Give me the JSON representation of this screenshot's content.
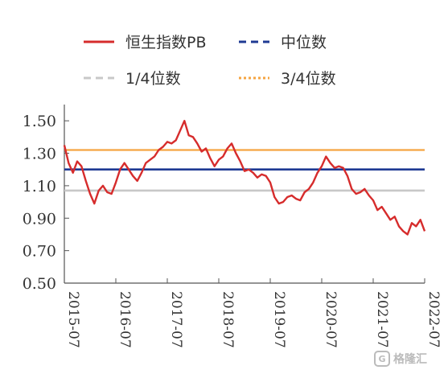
{
  "chart_data": {
    "type": "line",
    "title": "",
    "xlabel": "",
    "ylabel": "",
    "x_tick_labels": [
      "2015-07",
      "2016-07",
      "2017-07",
      "2018-07",
      "2019-07",
      "2020-07",
      "2021-07",
      "2022-07"
    ],
    "y_tick_labels": [
      "1.50",
      "1.30",
      "1.10",
      "0.90",
      "0.70",
      "0.50"
    ],
    "xlim": [
      "2015-07",
      "2022-07"
    ],
    "ylim": [
      0.5,
      1.6
    ],
    "grid": false,
    "legend_position": "top",
    "series": [
      {
        "name": "恒生指数PB",
        "style": "solid",
        "color": "#d62c2c",
        "x": [
          "2015-07",
          "2015-08",
          "2015-09",
          "2015-10",
          "2015-11",
          "2015-12",
          "2016-01",
          "2016-02",
          "2016-03",
          "2016-04",
          "2016-05",
          "2016-06",
          "2016-07",
          "2016-08",
          "2016-09",
          "2016-10",
          "2016-11",
          "2016-12",
          "2017-01",
          "2017-02",
          "2017-03",
          "2017-04",
          "2017-05",
          "2017-06",
          "2017-07",
          "2017-08",
          "2017-09",
          "2017-10",
          "2017-11",
          "2017-12",
          "2018-01",
          "2018-02",
          "2018-03",
          "2018-04",
          "2018-05",
          "2018-06",
          "2018-07",
          "2018-08",
          "2018-09",
          "2018-10",
          "2018-11",
          "2018-12",
          "2019-01",
          "2019-02",
          "2019-03",
          "2019-04",
          "2019-05",
          "2019-06",
          "2019-07",
          "2019-08",
          "2019-09",
          "2019-10",
          "2019-11",
          "2019-12",
          "2020-01",
          "2020-02",
          "2020-03",
          "2020-04",
          "2020-05",
          "2020-06",
          "2020-07",
          "2020-08",
          "2020-09",
          "2020-10",
          "2020-11",
          "2020-12",
          "2021-01",
          "2021-02",
          "2021-03",
          "2021-04",
          "2021-05",
          "2021-06",
          "2021-07",
          "2021-08",
          "2021-09",
          "2021-10",
          "2021-11",
          "2021-12",
          "2022-01",
          "2022-02",
          "2022-03",
          "2022-04",
          "2022-05",
          "2022-06",
          "2022-07"
        ],
        "values": [
          1.35,
          1.24,
          1.18,
          1.25,
          1.22,
          1.13,
          1.05,
          0.99,
          1.07,
          1.1,
          1.06,
          1.05,
          1.12,
          1.2,
          1.24,
          1.2,
          1.16,
          1.13,
          1.18,
          1.24,
          1.26,
          1.28,
          1.32,
          1.34,
          1.37,
          1.36,
          1.38,
          1.44,
          1.5,
          1.41,
          1.4,
          1.36,
          1.31,
          1.33,
          1.27,
          1.22,
          1.26,
          1.28,
          1.33,
          1.36,
          1.3,
          1.25,
          1.19,
          1.2,
          1.18,
          1.15,
          1.17,
          1.16,
          1.12,
          1.03,
          0.99,
          1.0,
          1.03,
          1.04,
          1.02,
          1.01,
          1.06,
          1.08,
          1.12,
          1.18,
          1.22,
          1.28,
          1.24,
          1.21,
          1.22,
          1.21,
          1.16,
          1.08,
          1.05,
          1.06,
          1.08,
          1.04,
          1.01,
          0.95,
          0.97,
          0.93,
          0.89,
          0.91,
          0.85,
          0.82,
          0.8,
          0.87,
          0.85,
          0.89,
          0.82
        ]
      },
      {
        "name": "中位数",
        "style": "dashed",
        "color": "#1f3a93",
        "values": [
          1.2
        ]
      },
      {
        "name": "1/4位数",
        "style": "dashed",
        "color": "#c8c8c8",
        "values": [
          1.07
        ]
      },
      {
        "name": "3/4位数",
        "style": "dotted",
        "color": "#f5a442",
        "values": [
          1.32
        ]
      }
    ]
  },
  "watermark": {
    "logo_text": "G",
    "text": "格隆汇"
  }
}
